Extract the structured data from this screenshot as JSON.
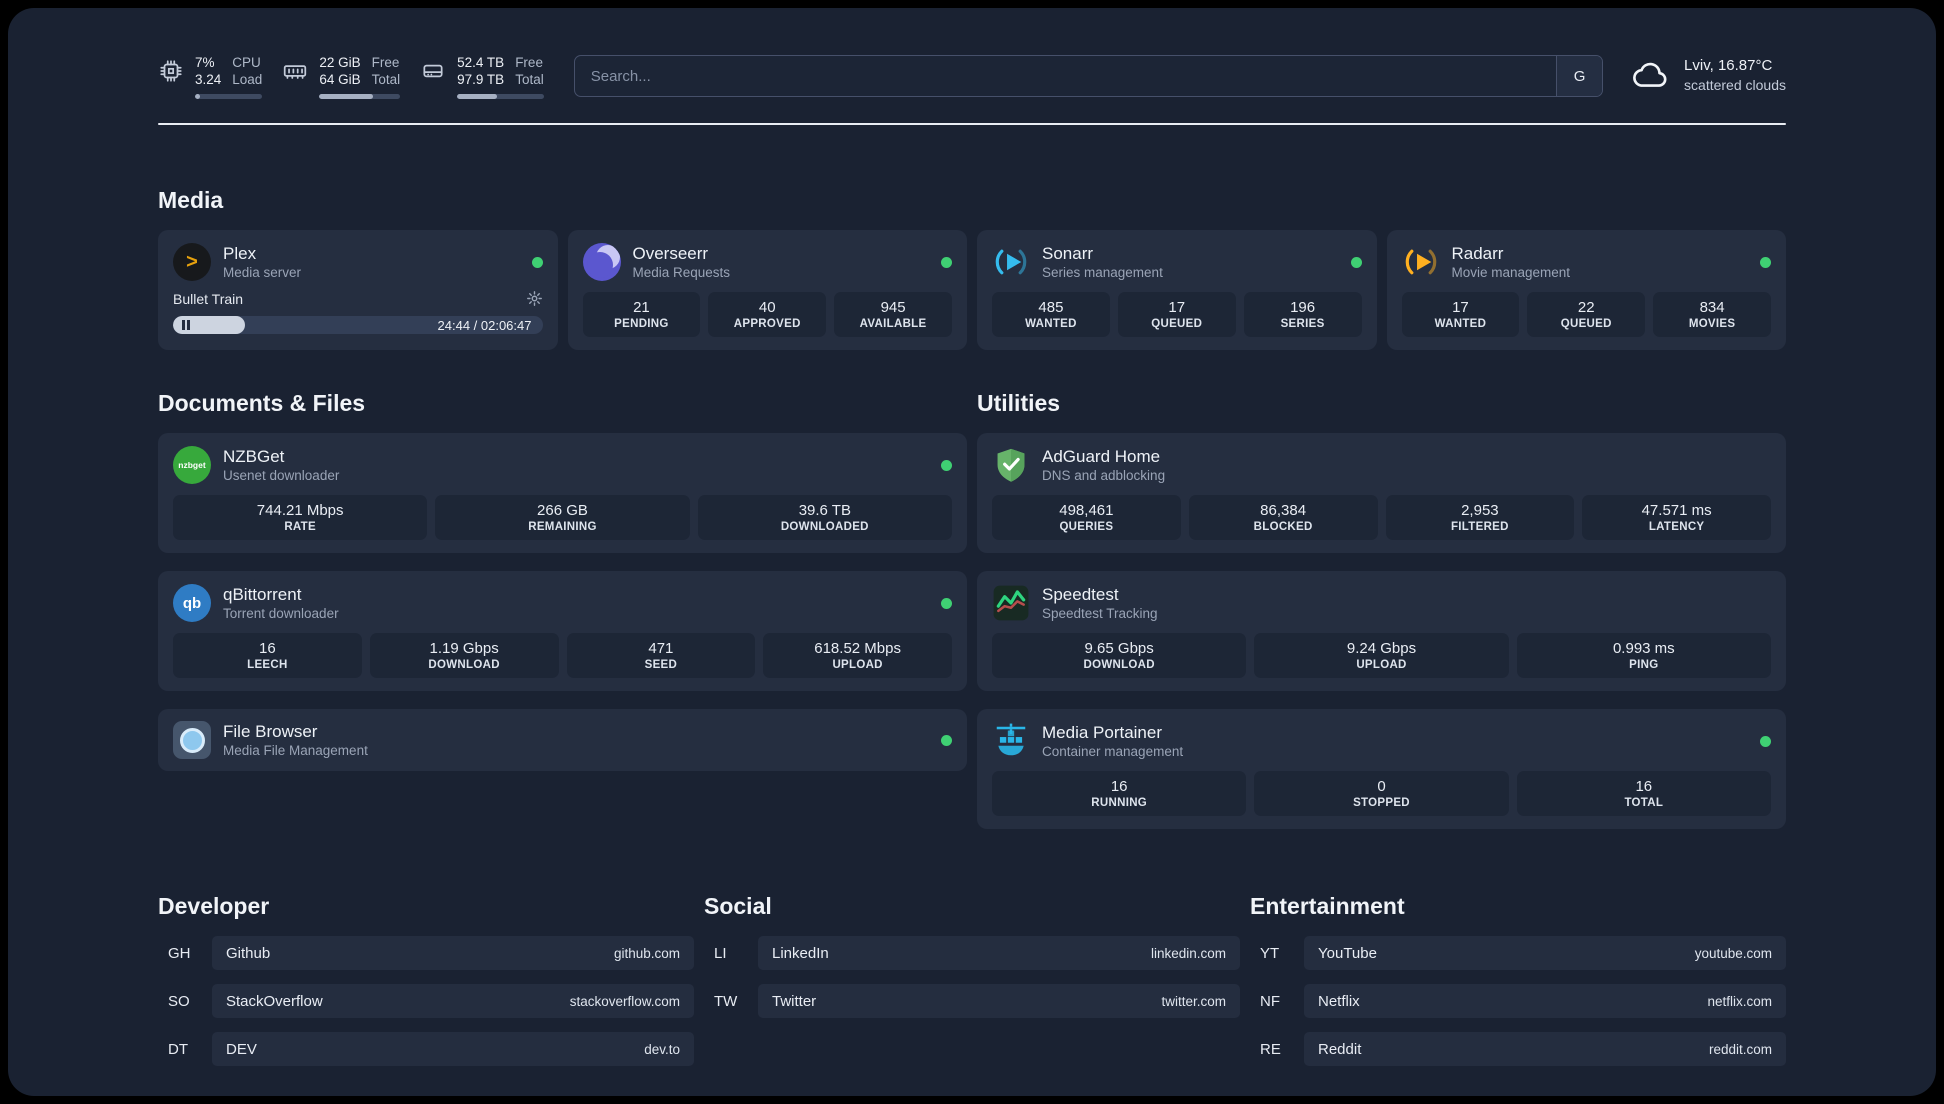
{
  "colors": {
    "status_online": "#3fd073",
    "accent_plex": "#e5a00d",
    "accent_sonarr": "#35bcee",
    "accent_radarr": "#ffb020",
    "accent_adguard": "#67b36a",
    "accent_portainer": "#29b6e8",
    "accent_speedtest": "#2ed47f"
  },
  "header": {
    "cpu": {
      "icon": "cpu-chip-icon",
      "values": [
        "7%",
        "3.24"
      ],
      "labels": [
        "CPU",
        "Load"
      ],
      "percent": 7
    },
    "ram": {
      "icon": "memory-icon",
      "values": [
        "22 GiB",
        "64 GiB"
      ],
      "labels": [
        "Free",
        "Total"
      ],
      "percent": 66
    },
    "disk": {
      "icon": "disk-icon",
      "values": [
        "52.4 TB",
        "97.9 TB"
      ],
      "labels": [
        "Free",
        "Total"
      ],
      "percent": 46
    },
    "search": {
      "placeholder": "Search...",
      "provider_label": "G"
    },
    "weather": {
      "icon": "cloud-icon",
      "location": "Lviv, 16.87°C",
      "condition": "scattered clouds"
    }
  },
  "sections": {
    "media": {
      "title": "Media",
      "plex": {
        "name": "Plex",
        "subtitle": "Media server",
        "online": true,
        "now_playing": "Bullet Train",
        "time": "24:44 / 02:06:47",
        "progress_percent": 19.5
      },
      "overseerr": {
        "name": "Overseerr",
        "subtitle": "Media Requests",
        "online": true,
        "stats": [
          {
            "value": "21",
            "label": "PENDING"
          },
          {
            "value": "40",
            "label": "APPROVED"
          },
          {
            "value": "945",
            "label": "AVAILABLE"
          }
        ]
      },
      "sonarr": {
        "name": "Sonarr",
        "subtitle": "Series management",
        "online": true,
        "stats": [
          {
            "value": "485",
            "label": "WANTED"
          },
          {
            "value": "17",
            "label": "QUEUED"
          },
          {
            "value": "196",
            "label": "SERIES"
          }
        ]
      },
      "radarr": {
        "name": "Radarr",
        "subtitle": "Movie management",
        "online": true,
        "stats": [
          {
            "value": "17",
            "label": "WANTED"
          },
          {
            "value": "22",
            "label": "QUEUED"
          },
          {
            "value": "834",
            "label": "MOVIES"
          }
        ]
      }
    },
    "documents": {
      "title": "Documents & Files",
      "nzbget": {
        "name": "NZBGet",
        "subtitle": "Usenet downloader",
        "online": true,
        "icon_text": "nzbget",
        "stats": [
          {
            "value": "744.21 Mbps",
            "label": "RATE"
          },
          {
            "value": "266 GB",
            "label": "REMAINING"
          },
          {
            "value": "39.6 TB",
            "label": "DOWNLOADED"
          }
        ]
      },
      "qbittorrent": {
        "name": "qBittorrent",
        "subtitle": "Torrent downloader",
        "online": true,
        "icon_text": "qb",
        "stats": [
          {
            "value": "16",
            "label": "LEECH"
          },
          {
            "value": "1.19 Gbps",
            "label": "DOWNLOAD"
          },
          {
            "value": "471",
            "label": "SEED"
          },
          {
            "value": "618.52 Mbps",
            "label": "UPLOAD"
          }
        ]
      },
      "filebrowser": {
        "name": "File Browser",
        "subtitle": "Media File Management",
        "online": true
      }
    },
    "utilities": {
      "title": "Utilities",
      "adguard": {
        "name": "AdGuard Home",
        "subtitle": "DNS and adblocking",
        "stats": [
          {
            "value": "498,461",
            "label": "QUERIES"
          },
          {
            "value": "86,384",
            "label": "BLOCKED"
          },
          {
            "value": "2,953",
            "label": "FILTERED"
          },
          {
            "value": "47.571 ms",
            "label": "LATENCY"
          }
        ]
      },
      "speedtest": {
        "name": "Speedtest",
        "subtitle": "Speedtest Tracking",
        "stats": [
          {
            "value": "9.65 Gbps",
            "label": "DOWNLOAD"
          },
          {
            "value": "9.24 Gbps",
            "label": "UPLOAD"
          },
          {
            "value": "0.993 ms",
            "label": "PING"
          }
        ]
      },
      "portainer": {
        "name": "Media Portainer",
        "subtitle": "Container management",
        "online": true,
        "stats": [
          {
            "value": "16",
            "label": "RUNNING"
          },
          {
            "value": "0",
            "label": "STOPPED"
          },
          {
            "value": "16",
            "label": "TOTAL"
          }
        ]
      }
    },
    "bookmarks": [
      {
        "title": "Developer",
        "links": [
          {
            "abbr": "GH",
            "name": "Github",
            "url": "github.com"
          },
          {
            "abbr": "SO",
            "name": "StackOverflow",
            "url": "stackoverflow.com"
          },
          {
            "abbr": "DT",
            "name": "DEV",
            "url": "dev.to"
          }
        ]
      },
      {
        "title": "Social",
        "links": [
          {
            "abbr": "LI",
            "name": "LinkedIn",
            "url": "linkedin.com"
          },
          {
            "abbr": "TW",
            "name": "Twitter",
            "url": "twitter.com"
          }
        ]
      },
      {
        "title": "Entertainment",
        "links": [
          {
            "abbr": "YT",
            "name": "YouTube",
            "url": "youtube.com"
          },
          {
            "abbr": "NF",
            "name": "Netflix",
            "url": "netflix.com"
          },
          {
            "abbr": "RE",
            "name": "Reddit",
            "url": "reddit.com"
          }
        ]
      }
    ]
  }
}
